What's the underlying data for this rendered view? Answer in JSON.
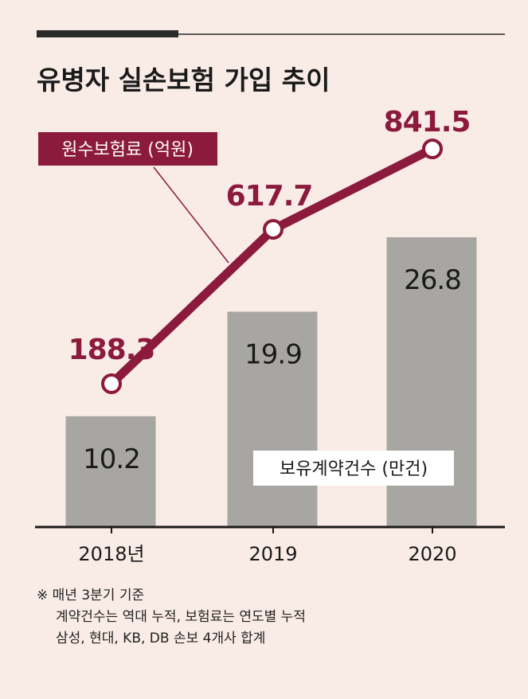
{
  "colors": {
    "background": "#f9ece6",
    "bar": "#a8a6a3",
    "line": "#8b1a3c",
    "text": "#1a1a1a"
  },
  "chart_data": {
    "type": "bar+line",
    "title": "유병자 실손보험 가입 추이",
    "categories": [
      "2018년",
      "2019",
      "2020"
    ],
    "series": [
      {
        "name": "보유계약건수 (만건)",
        "type": "bar",
        "values": [
          10.2,
          19.9,
          26.8
        ],
        "labels": [
          "10.2",
          "19.9",
          "26.8"
        ]
      },
      {
        "name": "원수보험료 (억원)",
        "type": "line",
        "values": [
          188.3,
          617.7,
          841.5
        ],
        "labels": [
          "188.3",
          "617.7",
          "841.5"
        ]
      }
    ],
    "ylim_bar": [
      0,
      26.8
    ],
    "ylim_line": [
      0,
      841.5
    ],
    "grid": false
  },
  "notes": [
    "※ 매년 3분기 기준",
    "계약건수는 역대 누적, 보험료는 연도별 누적",
    "삼성, 현대, KB, DB 손보 4개사 합계"
  ]
}
